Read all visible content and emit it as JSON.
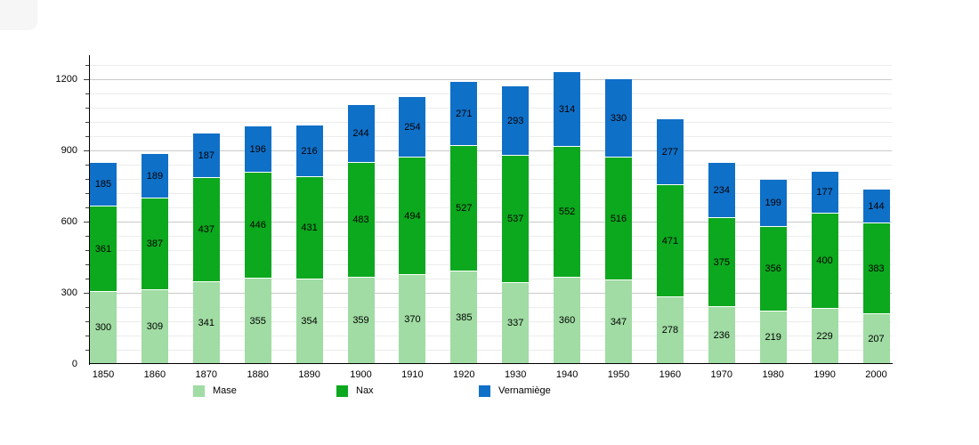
{
  "chart_data": {
    "type": "bar",
    "stacked": true,
    "title": "",
    "xlabel": "",
    "ylabel": "",
    "categories": [
      "1850",
      "1860",
      "1870",
      "1880",
      "1890",
      "1900",
      "1910",
      "1920",
      "1930",
      "1940",
      "1950",
      "1960",
      "1970",
      "1980",
      "1990",
      "2000"
    ],
    "series": [
      {
        "name": "Mase",
        "color": "#a0dca3",
        "values": [
          300,
          309,
          341,
          355,
          354,
          359,
          370,
          385,
          337,
          360,
          347,
          278,
          236,
          219,
          229,
          207
        ]
      },
      {
        "name": "Nax",
        "color": "#0ca81e",
        "values": [
          361,
          387,
          437,
          446,
          431,
          483,
          494,
          527,
          537,
          552,
          516,
          471,
          375,
          356,
          400,
          383
        ]
      },
      {
        "name": "Vernamiège",
        "color": "#0f70c8",
        "values": [
          185,
          189,
          187,
          196,
          216,
          244,
          254,
          271,
          293,
          314,
          330,
          277,
          234,
          199,
          177,
          144
        ]
      }
    ],
    "ylim": [
      0,
      1290
    ],
    "yticks": [
      0,
      300,
      600,
      900,
      1200
    ],
    "minor_gridline_step": 60,
    "grid": true,
    "legend_position": "bottom",
    "bar_value_labels": true,
    "axis_color": "#000000",
    "major_gridline_color": "#c9c9c9",
    "minor_gridline_color": "#ececec"
  }
}
